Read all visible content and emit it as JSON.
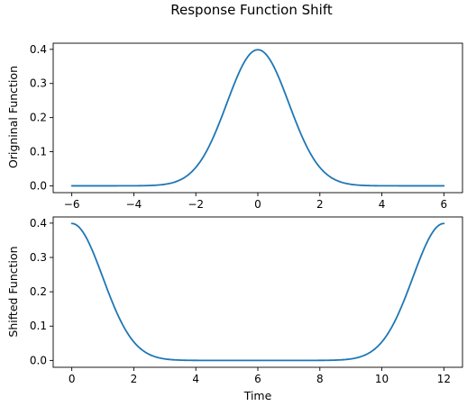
{
  "chart_data": {
    "title": "Response Function Shift",
    "line_color": "#1f77b4",
    "subplots": [
      {
        "type": "line",
        "function": "gaussian",
        "mean": 0,
        "sigma": 1,
        "x_range": [
          -6,
          6
        ],
        "xlim": [
          -6.6,
          6.6
        ],
        "ylim": [
          -0.02,
          0.418
        ],
        "xticks": [
          "-6",
          "-4",
          "-2",
          "0",
          "2",
          "4",
          "6"
        ],
        "yticks": [
          "0.0",
          "0.1",
          "0.2",
          "0.3",
          "0.4"
        ],
        "xlabel": "",
        "ylabel": "Origninal Function"
      },
      {
        "type": "line",
        "function": "shifted_gaussian_sum",
        "means": [
          0,
          12
        ],
        "sigma": 1,
        "x_range": [
          0,
          12
        ],
        "xlim": [
          -0.6,
          12.6
        ],
        "ylim": [
          -0.02,
          0.418
        ],
        "xticks": [
          "0",
          "2",
          "4",
          "6",
          "8",
          "10",
          "12"
        ],
        "yticks": [
          "0.0",
          "0.1",
          "0.2",
          "0.3",
          "0.4"
        ],
        "xlabel": "Time",
        "ylabel": "Shifted Function"
      }
    ]
  }
}
